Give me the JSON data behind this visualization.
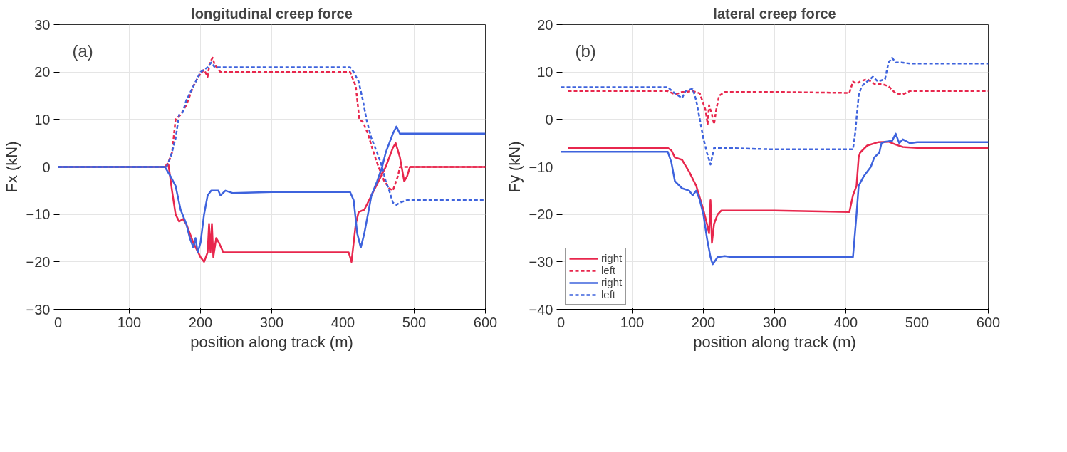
{
  "chart_data": [
    {
      "type": "line",
      "title": "longitudinal creep force",
      "xlabel": "position along track (m)",
      "ylabel": "Fx (kN)",
      "annotations": [
        "(a)"
      ],
      "xlim": [
        0,
        600
      ],
      "ylim": [
        -30,
        30
      ],
      "xticks": [
        0,
        100,
        200,
        300,
        400,
        500,
        600
      ],
      "yticks": [
        -30,
        -20,
        -10,
        0,
        10,
        20,
        30
      ],
      "grid": true,
      "series": [
        {
          "color": "#e8274d",
          "line_style": "solid",
          "x": [
            0,
            150,
            155,
            160,
            165,
            170,
            175,
            180,
            190,
            200,
            205,
            210,
            212,
            214,
            216,
            218,
            222,
            226,
            232,
            300,
            408,
            412,
            418,
            422,
            430,
            440,
            450,
            460,
            470,
            474,
            480,
            486,
            490,
            494,
            500,
            600
          ],
          "values": [
            0,
            0,
            0.5,
            -5,
            -10,
            -11.5,
            -11,
            -12,
            -16,
            -19,
            -20,
            -18,
            -12,
            -18,
            -12,
            -19,
            -15,
            -16,
            -18,
            -18,
            -18,
            -20,
            -12,
            -9.5,
            -9,
            -6,
            -3,
            0,
            4,
            5,
            2,
            -3,
            -2,
            0,
            0,
            0
          ]
        },
        {
          "color": "#e8274d",
          "line_style": "dashed",
          "x": [
            0,
            150,
            155,
            160,
            165,
            172,
            180,
            190,
            197,
            205,
            210,
            213,
            217,
            220,
            228,
            300,
            410,
            418,
            423,
            428,
            435,
            443,
            450,
            458,
            465,
            470,
            477,
            480,
            485,
            600
          ],
          "values": [
            0,
            0,
            1,
            3,
            10,
            11,
            13,
            17,
            19,
            20.5,
            19,
            22,
            23,
            21.5,
            20,
            20,
            20,
            17,
            10,
            9.5,
            7,
            3,
            0,
            -3,
            -4.5,
            -5,
            -2,
            0,
            0,
            0
          ]
        },
        {
          "color": "#3e63dd",
          "line_style": "solid",
          "x": [
            0,
            150,
            158,
            165,
            172,
            180,
            185,
            190,
            193,
            196,
            200,
            205,
            210,
            215,
            225,
            228,
            235,
            245,
            300,
            410,
            415,
            420,
            425,
            430,
            435,
            440,
            448,
            455,
            460,
            465,
            470,
            475,
            480,
            500,
            600
          ],
          "values": [
            0,
            0,
            -2,
            -4,
            -9,
            -12,
            -15,
            -17,
            -15,
            -18,
            -16,
            -10,
            -6,
            -5,
            -5,
            -6,
            -5,
            -5.5,
            -5.3,
            -5.3,
            -7,
            -14,
            -17,
            -14,
            -10,
            -6,
            -3,
            0,
            3,
            5,
            7,
            8.5,
            7,
            7,
            7
          ]
        },
        {
          "color": "#3e63dd",
          "line_style": "dashed",
          "x": [
            0,
            152,
            158,
            165,
            170,
            175,
            180,
            190,
            200,
            205,
            210,
            215,
            220,
            230,
            300,
            410,
            415,
            422,
            428,
            433,
            440,
            448,
            455,
            460,
            465,
            470,
            475,
            480,
            490,
            600
          ],
          "values": [
            0,
            0,
            2,
            6,
            11,
            11.5,
            14,
            17,
            20,
            20.5,
            21,
            22,
            21,
            21,
            21,
            21,
            20,
            18,
            14,
            10,
            6,
            3,
            0,
            -3,
            -5,
            -7.5,
            -8,
            -7.5,
            -7,
            -7
          ]
        }
      ]
    },
    {
      "type": "line",
      "title": "lateral creep force",
      "xlabel": "position along track (m)",
      "ylabel": "Fy (kN)",
      "annotations": [
        "(b)"
      ],
      "xlim": [
        0,
        600
      ],
      "ylim": [
        -40,
        20
      ],
      "xticks": [
        0,
        100,
        200,
        300,
        400,
        500,
        600
      ],
      "yticks": [
        -40,
        -30,
        -20,
        -10,
        0,
        10,
        20
      ],
      "grid": true,
      "legend": "bottom left",
      "series": [
        {
          "name": "right",
          "color": "#e8274d",
          "line_style": "solid",
          "x": [
            10,
            150,
            155,
            160,
            170,
            180,
            190,
            200,
            205,
            208,
            210,
            212,
            215,
            220,
            225,
            300,
            405,
            410,
            415,
            418,
            420,
            430,
            445,
            460,
            470,
            480,
            500,
            600
          ],
          "values": [
            -6,
            -6,
            -6.5,
            -8,
            -8.5,
            -11,
            -14,
            -19,
            -22,
            -24,
            -17,
            -26,
            -22,
            -20,
            -19.2,
            -19.2,
            -19.5,
            -16,
            -14,
            -8,
            -7,
            -5.5,
            -4.8,
            -4.7,
            -5.3,
            -5.8,
            -6,
            -6
          ]
        },
        {
          "name": "left",
          "color": "#e8274d",
          "line_style": "dashed",
          "x": [
            10,
            150,
            160,
            165,
            170,
            175,
            185,
            195,
            203,
            206,
            208,
            212,
            215,
            218,
            222,
            230,
            300,
            405,
            410,
            415,
            420,
            430,
            440,
            450,
            460,
            470,
            480,
            490,
            600
          ],
          "values": [
            6,
            6,
            5.3,
            5.5,
            5.8,
            5.8,
            6,
            5.5,
            2,
            -1,
            3,
            1,
            -1,
            2,
            5,
            5.8,
            5.8,
            5.6,
            8,
            7.5,
            8,
            8.5,
            7.5,
            7.5,
            7,
            5.5,
            5.3,
            6,
            6
          ]
        },
        {
          "name": "right",
          "color": "#3e63dd",
          "line_style": "solid",
          "x": [
            0,
            150,
            155,
            160,
            170,
            180,
            185,
            190,
            195,
            200,
            205,
            210,
            213,
            220,
            230,
            240,
            300,
            410,
            415,
            418,
            425,
            435,
            440,
            447,
            450,
            455,
            465,
            470,
            475,
            480,
            490,
            500,
            600
          ],
          "values": [
            -6.8,
            -6.8,
            -9,
            -13,
            -14.5,
            -15,
            -16,
            -15,
            -17,
            -20,
            -25,
            -29,
            -30.5,
            -29,
            -28.8,
            -29,
            -29,
            -29,
            -20,
            -14,
            -12,
            -10,
            -8,
            -7,
            -5,
            -4.7,
            -4.5,
            -3,
            -5,
            -4.2,
            -5,
            -4.8,
            -4.8
          ]
        },
        {
          "name": "left",
          "color": "#3e63dd",
          "line_style": "dashed",
          "x": [
            0,
            150,
            160,
            170,
            175,
            185,
            190,
            195,
            200,
            205,
            210,
            215,
            225,
            300,
            410,
            413,
            418,
            422,
            430,
            438,
            445,
            455,
            460,
            465,
            470,
            478,
            490,
            600
          ],
          "values": [
            6.8,
            6.8,
            5.5,
            4.5,
            6,
            6.5,
            4,
            0,
            -4,
            -7,
            -9.5,
            -6,
            -6,
            -6.3,
            -6.3,
            -3,
            5,
            7,
            8,
            9,
            8,
            8.5,
            12,
            13,
            12,
            12,
            11.8,
            11.8
          ]
        }
      ]
    }
  ]
}
